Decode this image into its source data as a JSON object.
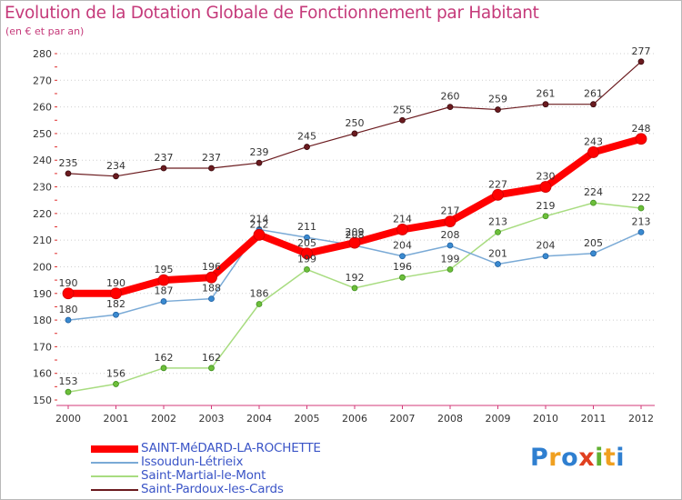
{
  "header": {
    "title": "Evolution de la Dotation Globale de Fonctionnement par Habitant",
    "subtitle": "(en € et par an)"
  },
  "logo": {
    "text": "Proxiti",
    "letters": [
      "P",
      "r",
      "o",
      "x",
      "i",
      "t",
      "i"
    ],
    "colors": [
      "#2f7fd0",
      "#f0a020",
      "#2f7fd0",
      "#e04020",
      "#60b030",
      "#f0a020",
      "#2f7fd0"
    ]
  },
  "chart_data": {
    "type": "line",
    "title": "Evolution de la Dotation Globale de Fonctionnement par Habitant",
    "ylabel": "(en € et par an)",
    "xlabel": "",
    "x": [
      "2000",
      "2001",
      "2002",
      "2003",
      "2004",
      "2005",
      "2006",
      "2007",
      "2008",
      "2009",
      "2010",
      "2011",
      "2012"
    ],
    "ylim": [
      150,
      280
    ],
    "yticks": [
      150,
      160,
      170,
      180,
      190,
      200,
      210,
      220,
      230,
      240,
      250,
      260,
      270,
      280
    ],
    "grid": "horizontal dotted",
    "legend": "bottom-left",
    "series": [
      {
        "name": "Saint-Pardoux-les-Cards",
        "color": "#6b1b1f",
        "values": [
          235,
          234,
          237,
          237,
          239,
          245,
          250,
          255,
          260,
          259,
          261,
          261,
          277
        ]
      },
      {
        "name": "Saint-Martial-le-Mont",
        "color": "#a8dc80",
        "marker": "#6dbf3a",
        "values": [
          153,
          156,
          162,
          162,
          186,
          199,
          192,
          196,
          199,
          213,
          219,
          224,
          222
        ]
      },
      {
        "name": "Issoudun-Létrieix",
        "color": "#7aaad6",
        "marker": "#3a8ad0",
        "values": [
          180,
          182,
          187,
          188,
          214,
          211,
          208,
          204,
          208,
          201,
          204,
          205,
          213
        ]
      },
      {
        "name": "SAINT-MéDARD-LA-ROCHETTE",
        "color": "#ff0000",
        "values": [
          190,
          190,
          195,
          196,
          212,
          205,
          209,
          214,
          217,
          227,
          230,
          243,
          248
        ]
      }
    ],
    "legend_order": [
      3,
      2,
      1,
      0
    ]
  }
}
